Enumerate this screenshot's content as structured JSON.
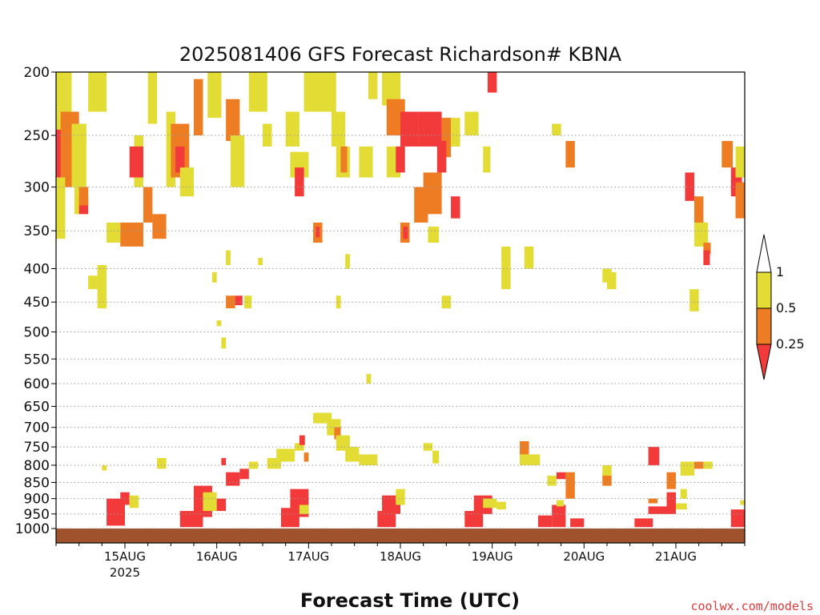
{
  "chart_data": {
    "type": "heatmap",
    "title": "2025081406 GFS Forecast Richardson# KBNA",
    "xlabel": "Forecast Time (UTC)",
    "ylabel": "",
    "credit": "coolwx.com/models",
    "x_range_days": [
      14.25,
      21.75
    ],
    "y_axis": {
      "scale": "log-pressure",
      "range": [
        1000,
        200
      ],
      "ticks": [
        "200",
        "250",
        "300",
        "350",
        "400",
        "450",
        "500",
        "550",
        "600",
        "650",
        "700",
        "750",
        "800",
        "850",
        "900",
        "950",
        "1000"
      ]
    },
    "x_ticks": [
      {
        "label": "15AUG",
        "sub": "2025",
        "day": 15.0
      },
      {
        "label": "16AUG",
        "sub": "",
        "day": 16.0
      },
      {
        "label": "17AUG",
        "sub": "",
        "day": 17.0
      },
      {
        "label": "18AUG",
        "sub": "",
        "day": 18.0
      },
      {
        "label": "19AUG",
        "sub": "",
        "day": 19.0
      },
      {
        "label": "20AUG",
        "sub": "",
        "day": 20.0
      },
      {
        "label": "21AUG",
        "sub": "",
        "day": 21.0
      }
    ],
    "legend": {
      "placement": "right",
      "bins": [
        {
          "name": "<0.25",
          "color": "#f23a3a"
        },
        {
          "name": "0.25-0.5",
          "color": "#ee7c22"
        },
        {
          "name": "0.5-1",
          "color": "#e3dc35"
        },
        {
          "name": ">1",
          "color": "#ffffff"
        }
      ],
      "labels": [
        "1",
        "0.5",
        "0.25"
      ]
    },
    "ground_color": "#a0522d",
    "cells": [
      {
        "t0": 14.25,
        "t1": 14.42,
        "p0": 200,
        "p1": 245,
        "bin": "0.5-1"
      },
      {
        "t0": 14.25,
        "t1": 14.5,
        "p0": 245,
        "p1": 290,
        "bin": "<0.25"
      },
      {
        "t0": 14.3,
        "t1": 14.5,
        "p0": 230,
        "p1": 300,
        "bin": "0.25-0.5"
      },
      {
        "t0": 14.42,
        "t1": 14.58,
        "p0": 240,
        "p1": 300,
        "bin": "0.5-1"
      },
      {
        "t0": 14.25,
        "t1": 14.35,
        "p0": 290,
        "p1": 360,
        "bin": "0.5-1"
      },
      {
        "t0": 14.45,
        "t1": 14.6,
        "p0": 300,
        "p1": 330,
        "bin": "0.5-1"
      },
      {
        "t0": 14.5,
        "t1": 14.6,
        "p0": 310,
        "p1": 330,
        "bin": "<0.25"
      },
      {
        "t0": 14.6,
        "t1": 14.8,
        "p0": 200,
        "p1": 230,
        "bin": "0.5-1"
      },
      {
        "t0": 14.8,
        "t1": 14.95,
        "p0": 340,
        "p1": 365,
        "bin": "0.5-1"
      },
      {
        "t0": 14.95,
        "t1": 15.2,
        "p0": 340,
        "p1": 370,
        "bin": "0.25-0.5"
      },
      {
        "t0": 15.1,
        "t1": 15.2,
        "p0": 250,
        "p1": 300,
        "bin": "0.5-1"
      },
      {
        "t0": 15.2,
        "t1": 15.3,
        "p0": 300,
        "p1": 340,
        "bin": "0.25-0.5"
      },
      {
        "t0": 15.3,
        "t1": 15.45,
        "p0": 330,
        "p1": 360,
        "bin": "0.25-0.5"
      },
      {
        "t0": 15.05,
        "t1": 15.2,
        "p0": 260,
        "p1": 290,
        "bin": "<0.25"
      },
      {
        "t0": 15.25,
        "t1": 15.35,
        "p0": 200,
        "p1": 240,
        "bin": "0.5-1"
      },
      {
        "t0": 15.45,
        "t1": 15.55,
        "p0": 230,
        "p1": 300,
        "bin": "0.5-1"
      },
      {
        "t0": 15.5,
        "t1": 15.7,
        "p0": 240,
        "p1": 290,
        "bin": "0.25-0.5"
      },
      {
        "t0": 15.55,
        "t1": 15.65,
        "p0": 260,
        "p1": 285,
        "bin": "<0.25"
      },
      {
        "t0": 15.6,
        "t1": 15.75,
        "p0": 280,
        "p1": 310,
        "bin": "0.5-1"
      },
      {
        "t0": 15.75,
        "t1": 15.85,
        "p0": 205,
        "p1": 250,
        "bin": "0.25-0.5"
      },
      {
        "t0": 15.9,
        "t1": 16.05,
        "p0": 200,
        "p1": 235,
        "bin": "0.5-1"
      },
      {
        "t0": 16.1,
        "t1": 16.25,
        "p0": 220,
        "p1": 255,
        "bin": "0.25-0.5"
      },
      {
        "t0": 16.15,
        "t1": 16.3,
        "p0": 250,
        "p1": 300,
        "bin": "0.5-1"
      },
      {
        "t0": 16.1,
        "t1": 16.2,
        "p0": 440,
        "p1": 460,
        "bin": "0.25-0.5"
      },
      {
        "t0": 16.2,
        "t1": 16.28,
        "p0": 440,
        "p1": 455,
        "bin": "<0.25"
      },
      {
        "t0": 16.35,
        "t1": 16.55,
        "p0": 200,
        "p1": 230,
        "bin": "0.5-1"
      },
      {
        "t0": 16.5,
        "t1": 16.6,
        "p0": 240,
        "p1": 260,
        "bin": "0.5-1"
      },
      {
        "t0": 16.75,
        "t1": 16.9,
        "p0": 230,
        "p1": 260,
        "bin": "0.5-1"
      },
      {
        "t0": 16.8,
        "t1": 17.0,
        "p0": 265,
        "p1": 290,
        "bin": "0.5-1"
      },
      {
        "t0": 16.85,
        "t1": 16.95,
        "p0": 280,
        "p1": 310,
        "bin": "<0.25"
      },
      {
        "t0": 16.95,
        "t1": 17.15,
        "p0": 200,
        "p1": 230,
        "bin": "0.5-1"
      },
      {
        "t0": 17.05,
        "t1": 17.15,
        "p0": 340,
        "p1": 365,
        "bin": "0.25-0.5"
      },
      {
        "t0": 17.08,
        "t1": 17.12,
        "p0": 345,
        "p1": 358,
        "bin": "<0.25"
      },
      {
        "t0": 17.15,
        "t1": 17.3,
        "p0": 200,
        "p1": 230,
        "bin": "0.5-1"
      },
      {
        "t0": 17.25,
        "t1": 17.4,
        "p0": 230,
        "p1": 260,
        "bin": "0.5-1"
      },
      {
        "t0": 17.3,
        "t1": 17.45,
        "p0": 260,
        "p1": 290,
        "bin": "0.5-1"
      },
      {
        "t0": 17.35,
        "t1": 17.42,
        "p0": 260,
        "p1": 285,
        "bin": "0.25-0.5"
      },
      {
        "t0": 17.55,
        "t1": 17.7,
        "p0": 260,
        "p1": 290,
        "bin": "0.5-1"
      },
      {
        "t0": 17.65,
        "t1": 17.75,
        "p0": 200,
        "p1": 220,
        "bin": "0.5-1"
      },
      {
        "t0": 17.8,
        "t1": 18.0,
        "p0": 200,
        "p1": 225,
        "bin": "0.5-1"
      },
      {
        "t0": 17.85,
        "t1": 18.05,
        "p0": 220,
        "p1": 250,
        "bin": "0.25-0.5"
      },
      {
        "t0": 17.85,
        "t1": 18.0,
        "p0": 260,
        "p1": 290,
        "bin": "0.5-1"
      },
      {
        "t0": 17.95,
        "t1": 18.05,
        "p0": 260,
        "p1": 285,
        "bin": "<0.25"
      },
      {
        "t0": 18.0,
        "t1": 18.2,
        "p0": 230,
        "p1": 260,
        "bin": "<0.25"
      },
      {
        "t0": 18.2,
        "t1": 18.45,
        "p0": 230,
        "p1": 260,
        "bin": "<0.25"
      },
      {
        "t0": 18.15,
        "t1": 18.3,
        "p0": 300,
        "p1": 340,
        "bin": "0.25-0.5"
      },
      {
        "t0": 18.25,
        "t1": 18.45,
        "p0": 285,
        "p1": 330,
        "bin": "0.25-0.5"
      },
      {
        "t0": 18.0,
        "t1": 18.1,
        "p0": 340,
        "p1": 365,
        "bin": "0.25-0.5"
      },
      {
        "t0": 18.03,
        "t1": 18.08,
        "p0": 345,
        "p1": 360,
        "bin": "<0.25"
      },
      {
        "t0": 18.3,
        "t1": 18.42,
        "p0": 345,
        "p1": 365,
        "bin": "0.5-1"
      },
      {
        "t0": 18.45,
        "t1": 18.55,
        "p0": 235,
        "p1": 270,
        "bin": "0.25-0.5"
      },
      {
        "t0": 18.4,
        "t1": 18.5,
        "p0": 255,
        "p1": 285,
        "bin": "<0.25"
      },
      {
        "t0": 18.55,
        "t1": 18.65,
        "p0": 310,
        "p1": 335,
        "bin": "<0.25"
      },
      {
        "t0": 18.55,
        "t1": 18.65,
        "p0": 235,
        "p1": 260,
        "bin": "0.5-1"
      },
      {
        "t0": 18.7,
        "t1": 18.85,
        "p0": 230,
        "p1": 250,
        "bin": "0.5-1"
      },
      {
        "t0": 18.9,
        "t1": 18.98,
        "p0": 260,
        "p1": 285,
        "bin": "0.5-1"
      },
      {
        "t0": 18.95,
        "t1": 19.05,
        "p0": 200,
        "p1": 215,
        "bin": "<0.25"
      },
      {
        "t0": 19.1,
        "t1": 19.2,
        "p0": 370,
        "p1": 430,
        "bin": "0.5-1"
      },
      {
        "t0": 19.35,
        "t1": 19.45,
        "p0": 370,
        "p1": 400,
        "bin": "0.5-1"
      },
      {
        "t0": 19.65,
        "t1": 19.75,
        "p0": 240,
        "p1": 250,
        "bin": "0.5-1"
      },
      {
        "t0": 19.8,
        "t1": 19.9,
        "p0": 255,
        "p1": 280,
        "bin": "0.25-0.5"
      },
      {
        "t0": 20.25,
        "t1": 20.35,
        "p0": 405,
        "p1": 430,
        "bin": "0.5-1"
      },
      {
        "t0": 20.2,
        "t1": 20.3,
        "p0": 400,
        "p1": 420,
        "bin": "0.5-1"
      },
      {
        "t0": 21.1,
        "t1": 21.2,
        "p0": 285,
        "p1": 315,
        "bin": "<0.25"
      },
      {
        "t0": 21.2,
        "t1": 21.3,
        "p0": 310,
        "p1": 345,
        "bin": "0.25-0.5"
      },
      {
        "t0": 21.2,
        "t1": 21.35,
        "p0": 340,
        "p1": 370,
        "bin": "0.5-1"
      },
      {
        "t0": 21.3,
        "t1": 21.38,
        "p0": 365,
        "p1": 380,
        "bin": "0.25-0.5"
      },
      {
        "t0": 21.3,
        "t1": 21.37,
        "p0": 375,
        "p1": 395,
        "bin": "<0.25"
      },
      {
        "t0": 21.15,
        "t1": 21.25,
        "p0": 430,
        "p1": 465,
        "bin": "0.5-1"
      },
      {
        "t0": 21.5,
        "t1": 21.62,
        "p0": 255,
        "p1": 280,
        "bin": "0.25-0.5"
      },
      {
        "t0": 21.6,
        "t1": 21.72,
        "p0": 280,
        "p1": 310,
        "bin": "<0.25"
      },
      {
        "t0": 21.65,
        "t1": 21.75,
        "p0": 295,
        "p1": 335,
        "bin": "0.25-0.5"
      },
      {
        "t0": 21.65,
        "t1": 21.75,
        "p0": 260,
        "p1": 290,
        "bin": "0.5-1"
      },
      {
        "t0": 14.5,
        "t1": 14.6,
        "p0": 300,
        "p1": 320,
        "bin": "0.25-0.5"
      },
      {
        "t0": 14.6,
        "t1": 14.7,
        "p0": 410,
        "p1": 430,
        "bin": "0.5-1"
      },
      {
        "t0": 14.7,
        "t1": 14.8,
        "p0": 395,
        "p1": 460,
        "bin": "0.5-1"
      },
      {
        "t0": 17.4,
        "t1": 17.45,
        "p0": 380,
        "p1": 400,
        "bin": "0.5-1"
      },
      {
        "t0": 17.3,
        "t1": 17.35,
        "p0": 440,
        "p1": 460,
        "bin": "0.5-1"
      },
      {
        "t0": 16.3,
        "t1": 16.38,
        "p0": 440,
        "p1": 460,
        "bin": "0.5-1"
      },
      {
        "t0": 16.1,
        "t1": 16.15,
        "p0": 375,
        "p1": 395,
        "bin": "0.5-1"
      },
      {
        "t0": 15.95,
        "t1": 16.0,
        "p0": 405,
        "p1": 420,
        "bin": "0.5-1"
      },
      {
        "t0": 16.45,
        "t1": 16.5,
        "p0": 385,
        "p1": 395,
        "bin": "0.5-1"
      },
      {
        "t0": 18.45,
        "t1": 18.55,
        "p0": 440,
        "p1": 460,
        "bin": "0.5-1"
      },
      {
        "t0": 16.0,
        "t1": 16.05,
        "p0": 480,
        "p1": 490,
        "bin": "0.5-1"
      },
      {
        "t0": 16.05,
        "t1": 16.1,
        "p0": 510,
        "p1": 530,
        "bin": "0.5-1"
      },
      {
        "t0": 17.63,
        "t1": 17.68,
        "p0": 580,
        "p1": 600,
        "bin": "0.5-1"
      },
      {
        "t0": 17.05,
        "t1": 17.25,
        "p0": 665,
        "p1": 690,
        "bin": "0.5-1"
      },
      {
        "t0": 17.2,
        "t1": 17.35,
        "p0": 680,
        "p1": 720,
        "bin": "0.5-1"
      },
      {
        "t0": 17.28,
        "t1": 17.35,
        "p0": 700,
        "p1": 730,
        "bin": "0.25-0.5"
      },
      {
        "t0": 17.3,
        "t1": 17.45,
        "p0": 720,
        "p1": 760,
        "bin": "0.5-1"
      },
      {
        "t0": 17.4,
        "t1": 17.55,
        "p0": 750,
        "p1": 790,
        "bin": "0.5-1"
      },
      {
        "t0": 17.55,
        "t1": 17.75,
        "p0": 770,
        "p1": 800,
        "bin": "0.5-1"
      },
      {
        "t0": 16.65,
        "t1": 16.85,
        "p0": 755,
        "p1": 790,
        "bin": "0.5-1"
      },
      {
        "t0": 16.55,
        "t1": 16.7,
        "p0": 780,
        "p1": 810,
        "bin": "0.5-1"
      },
      {
        "t0": 16.85,
        "t1": 16.95,
        "p0": 740,
        "p1": 760,
        "bin": "0.5-1"
      },
      {
        "t0": 16.9,
        "t1": 16.96,
        "p0": 720,
        "p1": 745,
        "bin": "<0.25"
      },
      {
        "t0": 16.95,
        "t1": 17.0,
        "p0": 765,
        "p1": 790,
        "bin": "0.25-0.5"
      },
      {
        "t0": 16.1,
        "t1": 16.25,
        "p0": 820,
        "p1": 860,
        "bin": "<0.25"
      },
      {
        "t0": 16.25,
        "t1": 16.35,
        "p0": 810,
        "p1": 840,
        "bin": "<0.25"
      },
      {
        "t0": 16.05,
        "t1": 16.1,
        "p0": 780,
        "p1": 800,
        "bin": "<0.25"
      },
      {
        "t0": 16.35,
        "t1": 16.45,
        "p0": 790,
        "p1": 810,
        "bin": "0.5-1"
      },
      {
        "t0": 15.35,
        "t1": 15.45,
        "p0": 780,
        "p1": 810,
        "bin": "0.5-1"
      },
      {
        "t0": 14.75,
        "t1": 14.8,
        "p0": 800,
        "p1": 815,
        "bin": "0.5-1"
      },
      {
        "t0": 18.25,
        "t1": 18.35,
        "p0": 740,
        "p1": 760,
        "bin": "0.5-1"
      },
      {
        "t0": 18.35,
        "t1": 18.42,
        "p0": 760,
        "p1": 795,
        "bin": "0.5-1"
      },
      {
        "t0": 19.3,
        "t1": 19.4,
        "p0": 735,
        "p1": 770,
        "bin": "0.25-0.5"
      },
      {
        "t0": 19.3,
        "t1": 19.52,
        "p0": 770,
        "p1": 800,
        "bin": "0.5-1"
      },
      {
        "t0": 19.6,
        "t1": 19.7,
        "p0": 830,
        "p1": 860,
        "bin": "0.5-1"
      },
      {
        "t0": 19.7,
        "t1": 19.8,
        "p0": 820,
        "p1": 840,
        "bin": "<0.25"
      },
      {
        "t0": 19.8,
        "t1": 19.9,
        "p0": 820,
        "p1": 900,
        "bin": "0.25-0.5"
      },
      {
        "t0": 20.2,
        "t1": 20.3,
        "p0": 800,
        "p1": 830,
        "bin": "0.5-1"
      },
      {
        "t0": 20.2,
        "t1": 20.3,
        "p0": 830,
        "p1": 860,
        "bin": "0.25-0.5"
      },
      {
        "t0": 20.7,
        "t1": 20.82,
        "p0": 750,
        "p1": 800,
        "bin": "<0.25"
      },
      {
        "t0": 20.9,
        "t1": 21.0,
        "p0": 820,
        "p1": 870,
        "bin": "0.25-0.5"
      },
      {
        "t0": 21.05,
        "t1": 21.2,
        "p0": 790,
        "p1": 830,
        "bin": "0.5-1"
      },
      {
        "t0": 21.2,
        "t1": 21.3,
        "p0": 790,
        "p1": 810,
        "bin": "0.25-0.5"
      },
      {
        "t0": 21.3,
        "t1": 21.4,
        "p0": 790,
        "p1": 810,
        "bin": "0.5-1"
      },
      {
        "t0": 21.05,
        "t1": 21.12,
        "p0": 870,
        "p1": 900,
        "bin": "0.5-1"
      },
      {
        "t0": 20.7,
        "t1": 20.8,
        "p0": 900,
        "p1": 915,
        "bin": "0.25-0.5"
      },
      {
        "t0": 14.8,
        "t1": 15.0,
        "p0": 900,
        "p1": 990,
        "bin": "<0.25"
      },
      {
        "t0": 14.95,
        "t1": 15.05,
        "p0": 880,
        "p1": 920,
        "bin": "<0.25"
      },
      {
        "t0": 15.05,
        "t1": 15.15,
        "p0": 890,
        "p1": 930,
        "bin": "0.5-1"
      },
      {
        "t0": 15.6,
        "t1": 15.85,
        "p0": 940,
        "p1": 995,
        "bin": "<0.25"
      },
      {
        "t0": 15.75,
        "t1": 15.95,
        "p0": 860,
        "p1": 960,
        "bin": "<0.25"
      },
      {
        "t0": 15.85,
        "t1": 16.0,
        "p0": 880,
        "p1": 940,
        "bin": "0.5-1"
      },
      {
        "t0": 16.0,
        "t1": 16.1,
        "p0": 900,
        "p1": 940,
        "bin": "<0.25"
      },
      {
        "t0": 16.7,
        "t1": 16.9,
        "p0": 930,
        "p1": 995,
        "bin": "<0.25"
      },
      {
        "t0": 16.8,
        "t1": 17.0,
        "p0": 870,
        "p1": 960,
        "bin": "<0.25"
      },
      {
        "t0": 16.9,
        "t1": 17.0,
        "p0": 920,
        "p1": 950,
        "bin": "0.5-1"
      },
      {
        "t0": 17.75,
        "t1": 17.95,
        "p0": 940,
        "p1": 995,
        "bin": "<0.25"
      },
      {
        "t0": 17.8,
        "t1": 18.0,
        "p0": 890,
        "p1": 950,
        "bin": "<0.25"
      },
      {
        "t0": 17.95,
        "t1": 18.05,
        "p0": 870,
        "p1": 920,
        "bin": "0.5-1"
      },
      {
        "t0": 18.7,
        "t1": 18.9,
        "p0": 940,
        "p1": 995,
        "bin": "<0.25"
      },
      {
        "t0": 18.8,
        "t1": 19.0,
        "p0": 890,
        "p1": 950,
        "bin": "<0.25"
      },
      {
        "t0": 18.9,
        "t1": 19.05,
        "p0": 900,
        "p1": 930,
        "bin": "0.5-1"
      },
      {
        "t0": 19.05,
        "t1": 19.15,
        "p0": 910,
        "p1": 935,
        "bin": "0.5-1"
      },
      {
        "t0": 19.5,
        "t1": 19.65,
        "p0": 955,
        "p1": 995,
        "bin": "<0.25"
      },
      {
        "t0": 19.65,
        "t1": 19.8,
        "p0": 920,
        "p1": 995,
        "bin": "<0.25"
      },
      {
        "t0": 19.7,
        "t1": 19.78,
        "p0": 905,
        "p1": 925,
        "bin": "0.5-1"
      },
      {
        "t0": 19.85,
        "t1": 20.0,
        "p0": 965,
        "p1": 995,
        "bin": "<0.25"
      },
      {
        "t0": 20.55,
        "t1": 20.75,
        "p0": 965,
        "p1": 995,
        "bin": "<0.25"
      },
      {
        "t0": 20.7,
        "t1": 20.95,
        "p0": 925,
        "p1": 950,
        "bin": "<0.25"
      },
      {
        "t0": 20.9,
        "t1": 21.0,
        "p0": 880,
        "p1": 950,
        "bin": "<0.25"
      },
      {
        "t0": 21.0,
        "t1": 21.12,
        "p0": 915,
        "p1": 935,
        "bin": "0.5-1"
      },
      {
        "t0": 21.6,
        "t1": 21.75,
        "p0": 935,
        "p1": 995,
        "bin": "<0.25"
      },
      {
        "t0": 21.7,
        "t1": 21.75,
        "p0": 905,
        "p1": 920,
        "bin": "0.5-1"
      }
    ]
  }
}
